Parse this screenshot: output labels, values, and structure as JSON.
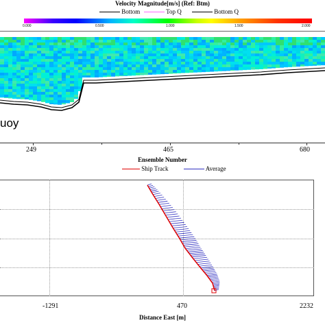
{
  "top_panel": {
    "title": "Velocity Magnitude[m/s] (Ref: Btm)",
    "legend": {
      "bottom": "Bottom",
      "top_q": "Top Q",
      "bottom_q": "Bottom Q"
    },
    "colorbar_ticks": [
      "0.000",
      "0.500",
      "1.000",
      "1.500",
      "2.000"
    ],
    "overlay_label": "uoy",
    "axis_ticks": [
      "249",
      "465",
      "680"
    ],
    "xlabel": "Ensemble Number",
    "colors": {
      "bottom_line": "#000000",
      "top_q_line": "#ff66ff",
      "bottom_q_line": "#000000"
    }
  },
  "bottom_panel": {
    "legend": {
      "ship_track": "Ship Track",
      "average": "Average"
    },
    "axis_ticks": [
      "-1291",
      "470",
      "2232"
    ],
    "xlabel": "Distance East [m]",
    "colors": {
      "ship_track": "#e00000",
      "average": "#3030c0"
    }
  }
}
